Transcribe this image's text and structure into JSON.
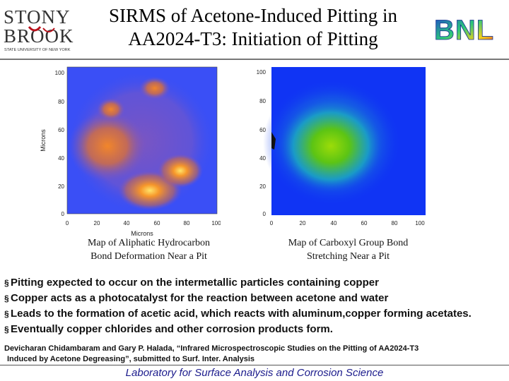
{
  "header": {
    "title_line1": "SIRMS of Acetone-Induced Pitting in",
    "title_line2": "AA2024-T3: Initiation of Pitting",
    "logo_left": {
      "line1": "STONY",
      "line2": "BROOK",
      "subtitle": "STATE UNIVERSITY OF NEW YORK"
    },
    "logo_right": {
      "text": "BNL"
    }
  },
  "map_left": {
    "y_ticks": [
      "100",
      "80",
      "60",
      "40",
      "20",
      "0"
    ],
    "x_ticks": [
      "0",
      "20",
      "40",
      "60",
      "80",
      "100"
    ],
    "ylabel": "Microns",
    "xlabel": "Microns",
    "caption_line1": "Map of Aliphatic Hydrocarbon",
    "caption_line2": "Bond Deformation Near a Pit",
    "colors": {
      "background": "#3a4ff6",
      "mid": "#7a55c2",
      "hot": "#f08a2a",
      "peak": "#ffd040"
    }
  },
  "map_right": {
    "y_ticks": [
      "100",
      "80",
      "60",
      "40",
      "20",
      "0"
    ],
    "x_ticks": [
      "0",
      "20",
      "40",
      "60",
      "80",
      "100"
    ],
    "caption_line1": "Map of Carboxyl Group Bond",
    "caption_line2": "Stretching Near a Pit",
    "colors": {
      "background": "#1034f4",
      "mid": "#1aa2c4",
      "hot": "#5cc414",
      "peak": "#8ed80a"
    }
  },
  "bullets": [
    "Pitting expected to occur on the intermetallic particles containing copper",
    "Copper acts as a photocatalyst for the reaction between acetone and water",
    "Leads to the formation of acetic acid, which reacts with aluminum,copper forming acetates.",
    "Eventually copper chlorides and other corrosion products form."
  ],
  "bullet_marker": "§",
  "reference": {
    "line1": "Devicharan Chidambaram and Gary P. Halada, “Infrared Microspectroscopic Studies on the Pitting of AA2024-T3",
    "line2": "Induced by Acetone Degreasing”, submitted to Surf. Inter. Analysis"
  },
  "footer": "Laboratory for Surface Analysis and Corrosion Science"
}
